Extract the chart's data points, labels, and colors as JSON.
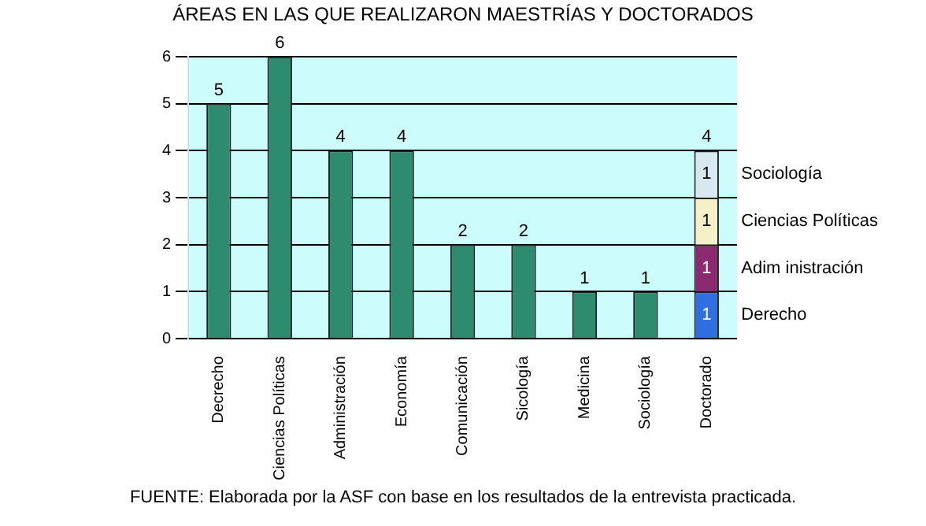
{
  "chart_data": {
    "type": "bar",
    "title": "ÁREAS EN LAS QUE REALIZARON MAESTRÍAS Y DOCTORADOS",
    "categories": [
      "Decrecho",
      "Ciencias Políticas",
      "Administración",
      "Economía",
      "Comunicación",
      "Sicología",
      "Medicina",
      "Sociología",
      "Doctorado"
    ],
    "stacked": true,
    "series": [
      {
        "color": "#2e8b6e",
        "values": [
          5,
          6,
          4,
          4,
          2,
          2,
          1,
          1,
          null
        ]
      },
      {
        "name": "Derecho",
        "color": "#2f6fe0",
        "values": [
          null,
          null,
          null,
          null,
          null,
          null,
          null,
          null,
          1
        ]
      },
      {
        "name": "Adim inistración",
        "color": "#8b2a6e",
        "values": [
          null,
          null,
          null,
          null,
          null,
          null,
          null,
          null,
          1
        ]
      },
      {
        "name": "Ciencias Políticas",
        "color": "#f5f0c8",
        "values": [
          null,
          null,
          null,
          null,
          null,
          null,
          null,
          null,
          1
        ]
      },
      {
        "name": "Sociología",
        "color": "#d8e8f0",
        "values": [
          null,
          null,
          null,
          null,
          null,
          null,
          null,
          null,
          1
        ]
      }
    ],
    "totals": [
      null,
      null,
      null,
      null,
      null,
      null,
      null,
      null,
      "4"
    ],
    "data_labels": true,
    "ylim": [
      0,
      6
    ],
    "yticks": [
      0,
      1,
      2,
      3,
      4,
      5,
      6
    ],
    "grid": "y",
    "legend": false,
    "annotations": [
      "FUENTE: Elaborada por la ASF con base en los resultados de la entrevista practicada."
    ]
  }
}
